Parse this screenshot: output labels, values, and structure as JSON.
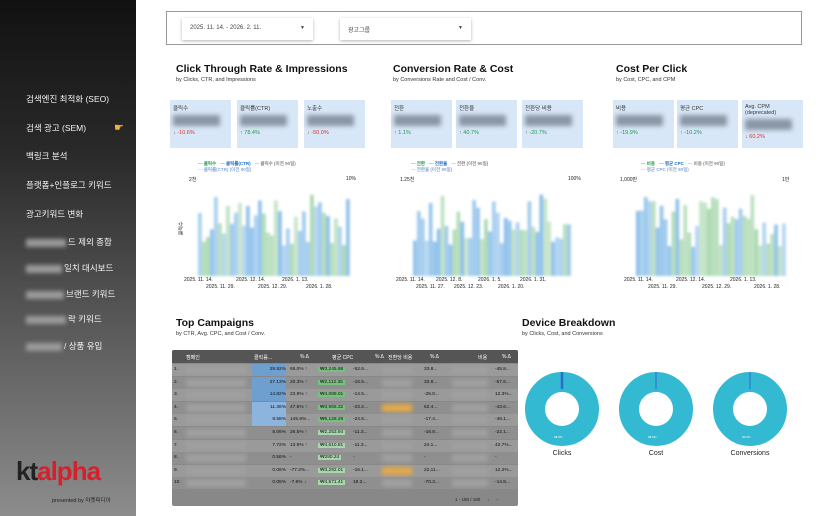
{
  "sidebar": {
    "items": [
      {
        "label": "검색엔진 최적화 (SEO)"
      },
      {
        "label": "검색 광고 (SEM)"
      },
      {
        "label": "백링크 분석"
      },
      {
        "label": "플랫폼+인플로그 키워드"
      },
      {
        "label": "광고키워드 변화"
      },
      {
        "label": "드 제외 종합"
      },
      {
        "label": "일치 대시보드"
      },
      {
        "label": "브랜드 키워드"
      },
      {
        "label": "락 키워드"
      },
      {
        "label": "/ 상품 유입"
      }
    ],
    "pointer_icon": "hand-pointing-icon",
    "logo_kt": "kt",
    "logo_alpha": "alpha",
    "presented": "presented by 마켓피디아"
  },
  "filters": {
    "date_range": "2025. 11. 14. - 2026. 2. 11.",
    "ad_group": "광고그룹"
  },
  "sections": {
    "ctr": {
      "title": "Click Through Rate & Impressions",
      "subtitle": "by Clicks, CTR, and Impressions",
      "kpis": [
        {
          "label": "클릭수",
          "change": "-10.6%",
          "dir": "down"
        },
        {
          "label": "클릭률(CTR)",
          "change": "78.4%",
          "dir": "up"
        },
        {
          "label": "노출수",
          "change": "-50.0%",
          "dir": "down"
        }
      ],
      "legend": [
        "클릭수",
        "클릭률(CTR)",
        "클릭수 (이전 90일)",
        "클릭률(CTR) (이전 90일)"
      ],
      "y_left_top": "2천",
      "y_right_top": "10%",
      "y_axis": "클릭수",
      "xticks_top": [
        "2025. 11. 14.",
        "2025. 12. 14.",
        "2026. 1. 13."
      ],
      "xticks_bottom": [
        "2025. 11. 29.",
        "2025. 12. 29.",
        "2026. 1. 28."
      ]
    },
    "conv": {
      "title": "Conversion Rate & Cost",
      "subtitle": "by Conversions Rate and Cost / Conv.",
      "kpis": [
        {
          "label": "전환",
          "change": "1.1%",
          "dir": "up"
        },
        {
          "label": "전환율",
          "change": "40.7%",
          "dir": "up"
        },
        {
          "label": "전환당 비용",
          "change": "-20.7%",
          "dir": "up"
        }
      ],
      "legend": [
        "전환",
        "전환율",
        "전환 (이전 90일)",
        "전환율 (이전 90일)"
      ],
      "y_left_top": "1.25천",
      "y_right_top": "100%",
      "xticks_top": [
        "2025. 11. 14.",
        "2025. 12. 8.",
        "2026. 1. 5.",
        "2026. 1. 31."
      ],
      "xticks_bottom": [
        "2025. 11. 27.",
        "2025. 12. 23.",
        "2026. 1. 20."
      ]
    },
    "cpc": {
      "title": "Cost Per Click",
      "subtitle": "by Cost, CPC, and CPM",
      "kpis": [
        {
          "label": "비용",
          "change": "-19.9%",
          "dir": "up"
        },
        {
          "label": "평균 CPC",
          "change": "-10.2%",
          "dir": "up"
        },
        {
          "label": "Avg. CPM (deprecated)",
          "change": "60.2%",
          "dir": "down"
        }
      ],
      "legend": [
        "비용",
        "평균 CPC",
        "비용 (이전 90일)",
        "평균 CPC (이전 90일)"
      ],
      "y_left_top": "1,000만",
      "y_right_top": "1만",
      "xticks_top": [
        "2025. 11. 14.",
        "2025. 12. 14.",
        "2026. 1. 13."
      ],
      "xticks_bottom": [
        "2025. 11. 29.",
        "2025. 12. 29.",
        "2026. 1. 28."
      ]
    }
  },
  "campaigns": {
    "title": "Top Campaigns",
    "subtitle": "by CTR, Avg. CPC, and Cost / Conv.",
    "headers": [
      "캠페인",
      "클릭률...",
      "% Δ",
      "평균 CPC",
      "% Δ",
      "전환당 비용",
      "% Δ",
      "비용",
      "% Δ"
    ],
    "rows": [
      {
        "n": "1.",
        "ctr": "29.92%",
        "d1": "65.0% ↑",
        "cpc": "₩3,245.88",
        "d2": "-52.6...",
        "d3": "33.8...",
        "d4": "-45.8..."
      },
      {
        "n": "2.",
        "ctr": "27.13%",
        "d1": "20.3% ↑",
        "cpc": "₩2,112.35",
        "d2": "-16.5...",
        "d3": "33.8...",
        "d4": "-57.6..."
      },
      {
        "n": "3.",
        "ctr": "14.82%",
        "d1": "23.9% ↑",
        "cpc": "₩4,089.01",
        "d2": "-14.5...",
        "d3": "-25.0...",
        "d4": "12.3%..."
      },
      {
        "n": "4.",
        "ctr": "11.36%",
        "d1": "47.6% ↑",
        "cpc": "₩3,965.32",
        "d2": "-23.2...",
        "d3": "62.4...",
        "d4": "-43.6..."
      },
      {
        "n": "5.",
        "ctr": "9.58%",
        "d1": "145.6%...",
        "cpc": "₩6,128.29",
        "d2": "-24.6...",
        "d3": "-17.4...",
        "d4": "-46.1..."
      },
      {
        "n": "6.",
        "ctr": "8.06%",
        "d1": "26.5% ↑",
        "cpc": "₩2,253.94",
        "d2": "-11.3...",
        "d3": "-16.8...",
        "d4": "-22.1..."
      },
      {
        "n": "7.",
        "ctr": "7.72%",
        "d1": "13.9% ↑",
        "cpc": "₩4,610.81",
        "d2": "-11.3...",
        "d3": "24.1...",
        "d4": "42.7%..."
      },
      {
        "n": "8.",
        "ctr": "0.56%",
        "d1": "-",
        "cpc": "₩280.24",
        "d2": "-",
        "d3": "-",
        "d4": "-"
      },
      {
        "n": "9.",
        "ctr": "0.06%",
        "d1": "-77.2%...",
        "cpc": "₩3,292.01",
        "d2": "-16.1...",
        "d3": "22,11...",
        "d4": "12.2%..."
      },
      {
        "n": "10.",
        "ctr": "0.05%",
        "d1": "-7.6% ↓",
        "cpc": "₩4,571.41",
        "d2": "18.2...",
        "d3": "-70.3...",
        "d4": "-14.8..."
      }
    ],
    "pager": "1 - 180 / 180"
  },
  "devices": {
    "title": "Device Breakdown",
    "subtitle": "by Clicks, Cost, and Conversions",
    "charts": [
      {
        "label": "Clicks",
        "small": "98.5%"
      },
      {
        "label": "Cost",
        "small": "99.6%"
      },
      {
        "label": "Conversions",
        "small": "99.6%"
      }
    ]
  },
  "colors": {
    "donut": "#34b9d3",
    "kpi_bg": "#d8e7f7",
    "bar_blue": "#7fb8e8",
    "bar_green": "#9fd4a6"
  }
}
